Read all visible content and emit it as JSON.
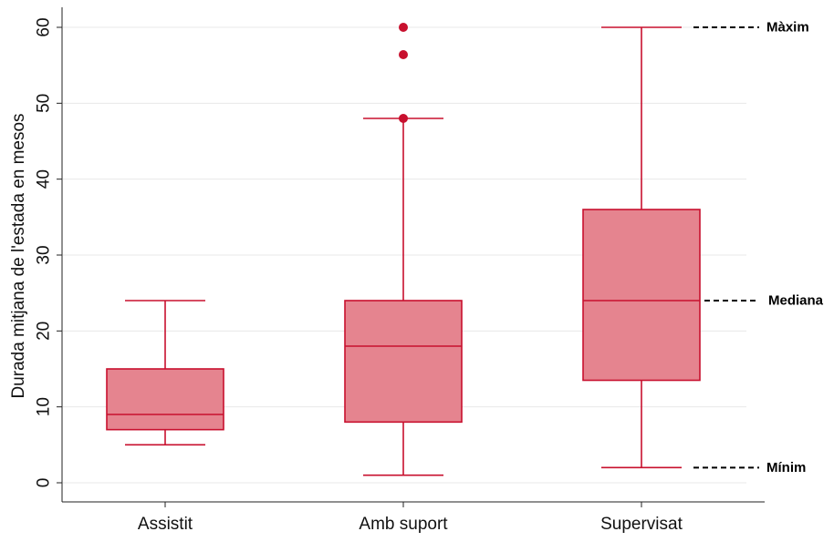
{
  "chart_data": {
    "type": "boxplot",
    "ylabel": "Durada mitjana de l'estada en mesos",
    "ylim": [
      -2,
      63
    ],
    "yticks": [
      0,
      10,
      20,
      30,
      40,
      50,
      60
    ],
    "grid": true,
    "colors": {
      "box_fill": "#e5848f",
      "box_stroke": "#c8102e",
      "outlier": "#c8102e",
      "grid": "#e8e8e8"
    },
    "categories": [
      "Assistit",
      "Amb suport",
      "Supervisat"
    ],
    "boxes": [
      {
        "label": "Assistit",
        "min": 5,
        "q1": 7,
        "median": 9,
        "q3": 15,
        "max": 24,
        "outliers": []
      },
      {
        "label": "Amb suport",
        "min": 1,
        "q1": 8,
        "median": 18,
        "q3": 24,
        "max": 48,
        "outliers": [
          48,
          56.4,
          60
        ]
      },
      {
        "label": "Supervisat",
        "min": 2,
        "q1": 13.5,
        "median": 24,
        "q3": 36,
        "max": 60,
        "outliers": []
      }
    ],
    "annotations": [
      {
        "text": "Màxim",
        "value": 60
      },
      {
        "text": "Mediana",
        "value": 24
      },
      {
        "text": "Mínim",
        "value": 2
      }
    ]
  }
}
